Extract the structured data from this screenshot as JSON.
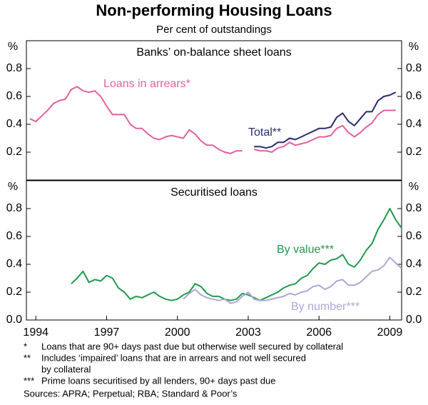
{
  "title": "Non-performing Housing Loans",
  "subtitle": "Per cent of outstandings",
  "chart_data": [
    {
      "type": "line",
      "title": "Banks’ on-balance sheet loans",
      "y_label": "%",
      "xlim": [
        1993.6,
        2009.5
      ],
      "ylim": [
        0,
        1
      ],
      "yticks": [
        0.2,
        0.4,
        0.6,
        0.8
      ],
      "series": [
        {
          "name": "Loans in arrears*",
          "color": "#e2609e",
          "x": [
            1993.75,
            1994,
            1994.25,
            1994.5,
            1994.75,
            1995,
            1995.25,
            1995.5,
            1995.75,
            1996,
            1996.25,
            1996.5,
            1996.75,
            1997,
            1997.25,
            1997.5,
            1997.75,
            1998,
            1998.25,
            1998.5,
            1998.75,
            1999,
            1999.25,
            1999.5,
            1999.75,
            2000,
            2000.25,
            2000.5,
            2000.75,
            2001,
            2001.25,
            2001.5,
            2001.75,
            2002,
            2002.25,
            2002.5,
            2002.75,
            2003,
            2003.25,
            2003.5,
            2003.75,
            2004,
            2004.25,
            2004.5,
            2004.75,
            2005,
            2005.25,
            2005.5,
            2005.75,
            2006,
            2006.25,
            2006.5,
            2006.75,
            2007,
            2007.25,
            2007.5,
            2007.75,
            2008,
            2008.25,
            2008.5,
            2008.75,
            2009,
            2009.25
          ],
          "values": [
            0.44,
            0.42,
            0.46,
            0.5,
            0.55,
            0.57,
            0.58,
            0.65,
            0.67,
            0.64,
            0.63,
            0.64,
            0.6,
            0.53,
            0.47,
            0.47,
            0.47,
            0.4,
            0.37,
            0.37,
            0.33,
            0.3,
            0.29,
            0.31,
            0.32,
            0.31,
            0.3,
            0.36,
            0.33,
            0.28,
            0.25,
            0.25,
            0.22,
            0.2,
            0.19,
            0.21,
            0.21,
            null,
            0.22,
            0.21,
            0.21,
            0.2,
            0.23,
            0.24,
            0.27,
            0.25,
            0.26,
            0.27,
            0.29,
            0.31,
            0.31,
            0.32,
            0.37,
            0.39,
            0.34,
            0.31,
            0.34,
            0.38,
            0.41,
            0.47,
            0.5,
            0.5,
            0.5
          ]
        },
        {
          "name": "Total**",
          "color": "#2b2b6e",
          "x": [
            2003.25,
            2003.5,
            2003.75,
            2004,
            2004.25,
            2004.5,
            2004.75,
            2005,
            2005.25,
            2005.5,
            2005.75,
            2006,
            2006.25,
            2006.5,
            2006.75,
            2007,
            2007.25,
            2007.5,
            2007.75,
            2008,
            2008.25,
            2008.5,
            2008.75,
            2009,
            2009.25
          ],
          "values": [
            0.24,
            0.24,
            0.23,
            0.24,
            0.27,
            0.27,
            0.3,
            0.29,
            0.31,
            0.33,
            0.35,
            0.37,
            0.37,
            0.38,
            0.45,
            0.48,
            0.42,
            0.39,
            0.44,
            0.49,
            0.49,
            0.57,
            0.6,
            0.61,
            0.63
          ]
        }
      ]
    },
    {
      "type": "line",
      "title": "Securitised loans",
      "y_label": "%",
      "xlim": [
        1993.6,
        2009.5
      ],
      "ylim": [
        0,
        1
      ],
      "yticks": [
        {
          "value": 0,
          "label": "0.0"
        },
        0.2,
        0.4,
        0.6,
        0.8
      ],
      "xticks": [
        1994,
        1997,
        2000,
        2003,
        2006,
        2009
      ],
      "series": [
        {
          "name": "By value***",
          "color": "#1f9a4c",
          "x": [
            1995.5,
            1995.75,
            1996,
            1996.25,
            1996.5,
            1996.75,
            1997,
            1997.25,
            1997.5,
            1997.75,
            1998,
            1998.25,
            1998.5,
            1998.75,
            1999,
            1999.25,
            1999.5,
            1999.75,
            2000,
            2000.25,
            2000.5,
            2000.75,
            2001,
            2001.25,
            2001.5,
            2001.75,
            2002,
            2002.25,
            2002.5,
            2002.75,
            2003,
            2003.25,
            2003.5,
            2003.75,
            2004,
            2004.25,
            2004.5,
            2004.75,
            2005,
            2005.25,
            2005.5,
            2005.75,
            2006,
            2006.25,
            2006.5,
            2006.75,
            2007,
            2007.25,
            2007.5,
            2007.75,
            2008,
            2008.25,
            2008.5,
            2008.75,
            2009,
            2009.25,
            2009.5
          ],
          "values": [
            0.26,
            0.3,
            0.35,
            0.27,
            0.29,
            0.28,
            0.32,
            0.3,
            0.23,
            0.2,
            0.15,
            0.17,
            0.16,
            0.18,
            0.2,
            0.17,
            0.15,
            0.14,
            0.15,
            0.18,
            0.2,
            0.26,
            0.24,
            0.19,
            0.17,
            0.17,
            0.15,
            0.14,
            0.15,
            0.19,
            0.18,
            0.16,
            0.14,
            0.16,
            0.18,
            0.2,
            0.23,
            0.25,
            0.26,
            0.3,
            0.32,
            0.37,
            0.41,
            0.4,
            0.43,
            0.44,
            0.47,
            0.4,
            0.38,
            0.43,
            0.5,
            0.55,
            0.65,
            0.72,
            0.8,
            0.72,
            0.66
          ]
        },
        {
          "name": "By number***",
          "color": "#a9a9d6",
          "x": [
            2000.25,
            2000.5,
            2000.75,
            2001,
            2001.25,
            2001.5,
            2001.75,
            2002,
            2002.25,
            2002.5,
            2002.75,
            2003,
            2003.25,
            2003.5,
            2003.75,
            2004,
            2004.25,
            2004.5,
            2004.75,
            2005,
            2005.25,
            2005.5,
            2005.75,
            2006,
            2006.25,
            2006.5,
            2006.75,
            2007,
            2007.25,
            2007.5,
            2007.75,
            2008,
            2008.25,
            2008.5,
            2008.75,
            2009,
            2009.25,
            2009.5
          ],
          "values": [
            0.15,
            0.19,
            0.22,
            0.18,
            0.16,
            0.15,
            0.14,
            0.15,
            0.12,
            0.13,
            0.17,
            0.2,
            0.15,
            0.14,
            0.14,
            0.15,
            0.16,
            0.17,
            0.19,
            0.18,
            0.2,
            0.21,
            0.24,
            0.25,
            0.22,
            0.24,
            0.28,
            0.29,
            0.25,
            0.25,
            0.27,
            0.31,
            0.35,
            0.36,
            0.39,
            0.45,
            0.41,
            0.37
          ]
        }
      ]
    }
  ],
  "footnotes": [
    {
      "marker": "*",
      "lines": [
        "Loans that are 90+ days past due but otherwise well secured by collateral"
      ]
    },
    {
      "marker": "**",
      "lines": [
        "Includes ‘impaired’ loans that are in arrears and not well secured",
        "by collateral"
      ]
    },
    {
      "marker": "***",
      "lines": [
        "Prime loans securitised by all lenders, 90+ days past due"
      ]
    }
  ],
  "sources": "Sources: APRA; Perpetual; RBA; Standard & Poor’s"
}
